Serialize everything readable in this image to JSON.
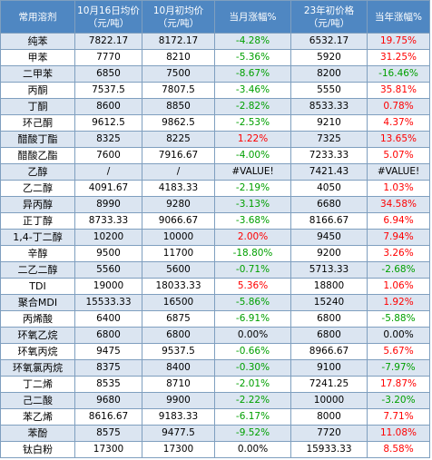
{
  "header": {
    "col_name": "常用溶剂",
    "col_oct16": "10月16日均价（元/吨）",
    "col_oct1": "10月初均价（元/吨）",
    "col_month_change": "当月涨幅%",
    "col_year_start": "23年初价格（元/吨）",
    "col_year_change": "当年涨幅%"
  },
  "colors": {
    "header_bg": "#4f87c2",
    "row_odd_bg": "#dbe5f1",
    "row_even_bg": "#ffffff",
    "positive": "#ff0000",
    "negative": "#00a000",
    "border": "#7f9fbf"
  },
  "rows": [
    {
      "name": "纯苯",
      "oct16": "7822.17",
      "oct1": "8172.17",
      "month_change": "-4.28%",
      "year_start": "6532.17",
      "year_change": "19.75%"
    },
    {
      "name": "甲苯",
      "oct16": "7770",
      "oct1": "8210",
      "month_change": "-5.36%",
      "year_start": "5920",
      "year_change": "31.25%"
    },
    {
      "name": "二甲苯",
      "oct16": "6850",
      "oct1": "7500",
      "month_change": "-8.67%",
      "year_start": "8200",
      "year_change": "-16.46%"
    },
    {
      "name": "丙酮",
      "oct16": "7537.5",
      "oct1": "7807.5",
      "month_change": "-3.46%",
      "year_start": "5550",
      "year_change": "35.81%"
    },
    {
      "name": "丁酮",
      "oct16": "8600",
      "oct1": "8850",
      "month_change": "-2.82%",
      "year_start": "8533.33",
      "year_change": "0.78%"
    },
    {
      "name": "环己酮",
      "oct16": "9612.5",
      "oct1": "9862.5",
      "month_change": "-2.53%",
      "year_start": "9210",
      "year_change": "4.37%"
    },
    {
      "name": "醋酸丁酯",
      "oct16": "8325",
      "oct1": "8225",
      "month_change": "1.22%",
      "year_start": "7325",
      "year_change": "13.65%"
    },
    {
      "name": "醋酸乙酯",
      "oct16": "7600",
      "oct1": "7916.67",
      "month_change": "-4.00%",
      "year_start": "7233.33",
      "year_change": "5.07%"
    },
    {
      "name": "乙醇",
      "oct16": "/",
      "oct1": "/",
      "month_change": "#VALUE!",
      "year_start": "7421.43",
      "year_change": "#VALUE!"
    },
    {
      "name": "乙二醇",
      "oct16": "4091.67",
      "oct1": "4183.33",
      "month_change": "-2.19%",
      "year_start": "4050",
      "year_change": "1.03%"
    },
    {
      "name": "异丙醇",
      "oct16": "8990",
      "oct1": "9280",
      "month_change": "-3.13%",
      "year_start": "6680",
      "year_change": "34.58%"
    },
    {
      "name": "正丁醇",
      "oct16": "8733.33",
      "oct1": "9066.67",
      "month_change": "-3.68%",
      "year_start": "8166.67",
      "year_change": "6.94%"
    },
    {
      "name": "1,4-丁二醇",
      "oct16": "10200",
      "oct1": "10000",
      "month_change": "2.00%",
      "year_start": "9450",
      "year_change": "7.94%"
    },
    {
      "name": "辛醇",
      "oct16": "9500",
      "oct1": "11700",
      "month_change": "-18.80%",
      "year_start": "9200",
      "year_change": "3.26%"
    },
    {
      "name": "二乙二醇",
      "oct16": "5560",
      "oct1": "5600",
      "month_change": "-0.71%",
      "year_start": "5713.33",
      "year_change": "-2.68%"
    },
    {
      "name": "TDI",
      "oct16": "19000",
      "oct1": "18033.33",
      "month_change": "5.36%",
      "year_start": "18800",
      "year_change": "1.06%"
    },
    {
      "name": "聚合MDI",
      "oct16": "15533.33",
      "oct1": "16500",
      "month_change": "-5.86%",
      "year_start": "15240",
      "year_change": "1.92%"
    },
    {
      "name": "丙烯酸",
      "oct16": "6400",
      "oct1": "6875",
      "month_change": "-6.91%",
      "year_start": "6800",
      "year_change": "-5.88%"
    },
    {
      "name": "环氧乙烷",
      "oct16": "6800",
      "oct1": "6800",
      "month_change": "0.00%",
      "year_start": "6800",
      "year_change": "0.00%"
    },
    {
      "name": "环氧丙烷",
      "oct16": "9475",
      "oct1": "9537.5",
      "month_change": "-0.66%",
      "year_start": "8966.67",
      "year_change": "5.67%"
    },
    {
      "name": "环氧氯丙烷",
      "oct16": "8375",
      "oct1": "8400",
      "month_change": "-0.30%",
      "year_start": "9100",
      "year_change": "-7.97%"
    },
    {
      "name": "丁二烯",
      "oct16": "8535",
      "oct1": "8710",
      "month_change": "-2.01%",
      "year_start": "7241.25",
      "year_change": "17.87%"
    },
    {
      "name": "己二酸",
      "oct16": "9680",
      "oct1": "9900",
      "month_change": "-2.22%",
      "year_start": "10000",
      "year_change": "-3.20%"
    },
    {
      "name": "苯乙烯",
      "oct16": "8616.67",
      "oct1": "9183.33",
      "month_change": "-6.17%",
      "year_start": "8000",
      "year_change": "7.71%"
    },
    {
      "name": "苯酚",
      "oct16": "8575",
      "oct1": "9477.5",
      "month_change": "-9.52%",
      "year_start": "7720",
      "year_change": "11.08%"
    },
    {
      "name": "钛白粉",
      "oct16": "17300",
      "oct1": "17300",
      "month_change": "0.00%",
      "year_start": "15933.33",
      "year_change": "8.58%"
    }
  ]
}
